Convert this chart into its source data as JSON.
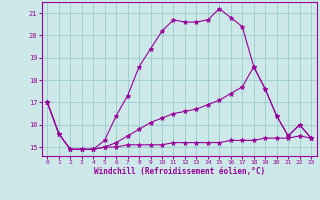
{
  "xlabel": "Windchill (Refroidissement éolien,°C)",
  "background_color": "#cce8e8",
  "grid_color": "#99cccc",
  "line_color": "#990099",
  "xlim": [
    -0.5,
    23.5
  ],
  "ylim": [
    14.6,
    21.5
  ],
  "yticks": [
    15,
    16,
    17,
    18,
    19,
    20,
    21
  ],
  "xticks": [
    0,
    1,
    2,
    3,
    4,
    5,
    6,
    7,
    8,
    9,
    10,
    11,
    12,
    13,
    14,
    15,
    16,
    17,
    18,
    19,
    20,
    21,
    22,
    23
  ],
  "series": [
    [
      17.0,
      15.6,
      14.9,
      14.9,
      14.9,
      15.3,
      16.4,
      17.3,
      18.6,
      19.4,
      20.2,
      20.7,
      20.6,
      20.6,
      20.7,
      21.2,
      20.8,
      20.4,
      18.6,
      17.6,
      16.4,
      15.5,
      16.0,
      15.4
    ],
    [
      17.0,
      15.6,
      14.9,
      14.9,
      14.9,
      15.0,
      15.2,
      15.5,
      15.8,
      16.1,
      16.3,
      16.5,
      16.6,
      16.7,
      16.9,
      17.1,
      17.4,
      17.7,
      18.6,
      17.6,
      16.4,
      15.5,
      16.0,
      15.4
    ],
    [
      17.0,
      15.6,
      14.9,
      14.9,
      14.9,
      15.0,
      15.0,
      15.1,
      15.1,
      15.1,
      15.1,
      15.2,
      15.2,
      15.2,
      15.2,
      15.2,
      15.3,
      15.3,
      15.3,
      15.4,
      15.4,
      15.4,
      15.5,
      15.4
    ]
  ]
}
